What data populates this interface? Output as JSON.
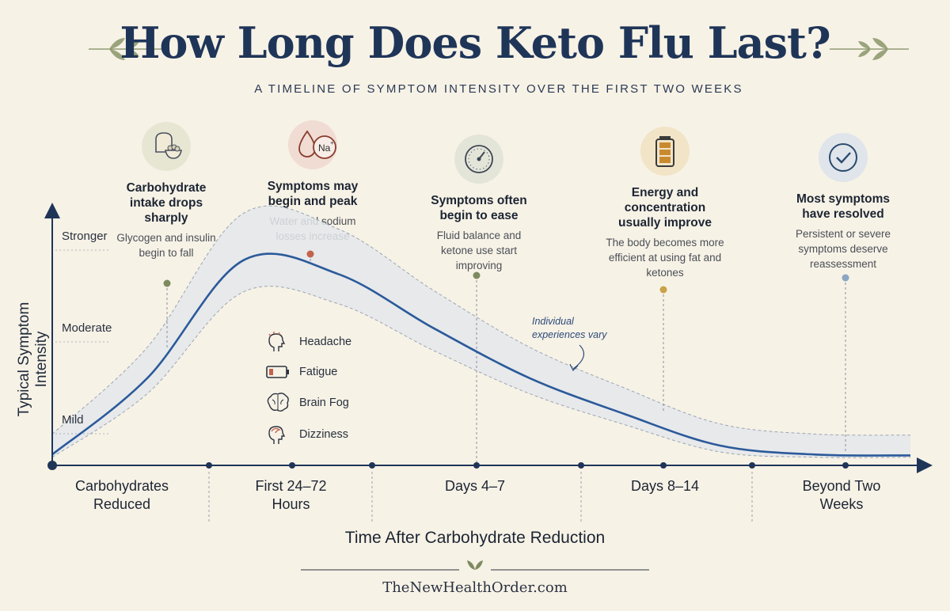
{
  "title": "How Long Does Keto Flu Last?",
  "subtitle": "A TIMELINE OF SYMPTOM INTENSITY OVER THE FIRST TWO WEEKS",
  "colors": {
    "navy": "#1f3558",
    "curve": "#2b5a9a",
    "band": "#e4e8eb",
    "background": "#f7f2e6",
    "accent_olive": "#7d8a5e",
    "accent_red": "#c2624c",
    "accent_gold": "#c9a24a",
    "accent_blue": "#8aa6c2"
  },
  "stages": [
    {
      "icon": "bread-bowl-icon",
      "heading": "Carbohydrate intake drops sharply",
      "body": "Glycogen and insulin begin to fall",
      "marker_color": "#7d8a5e"
    },
    {
      "icon": "water-sodium-icon",
      "heading": "Symptoms may begin and peak",
      "body": "Water and sodium losses increase",
      "marker_color": "#c2624c"
    },
    {
      "icon": "gauge-icon",
      "heading": "Symptoms often begin to ease",
      "body": "Fluid balance and ketone use start improving",
      "marker_color": "#7d8a5e"
    },
    {
      "icon": "battery-icon",
      "heading": "Energy and concentration usually improve",
      "body": "The body becomes more efficient at using fat and ketones",
      "marker_color": "#c9a24a"
    },
    {
      "icon": "check-circle-icon",
      "heading": "Most symptoms have resolved",
      "body": "Persistent or severe symptoms deserve reassessment",
      "marker_color": "#8aa6c2"
    }
  ],
  "chart_data": {
    "type": "area",
    "ylabel": "Typical Symptom Intensity",
    "xlabel": "Time After Carbohydrate Reduction",
    "y_levels": [
      "Mild",
      "Moderate",
      "Stronger"
    ],
    "x_categories": [
      "Carbohydrates Reduced",
      "First 24–72 Hours",
      "Days 4–7",
      "Days 8–14",
      "Beyond Two Weeks"
    ],
    "series": [
      {
        "x": [
          0,
          0.5,
          1,
          1.5,
          2,
          2.5,
          3,
          3.5,
          4,
          4.5
        ],
        "y": [
          0.05,
          0.9,
          2.2,
          2.05,
          1.45,
          0.9,
          0.5,
          0.15,
          0.05,
          0.04
        ]
      }
    ],
    "band": {
      "upper_peak": 2.5,
      "lower_peak": 1.9
    },
    "annotation": "Individual experiences vary",
    "symptoms": [
      {
        "icon": "headache-icon",
        "label": "Headache"
      },
      {
        "icon": "battery-low-icon",
        "label": "Fatigue"
      },
      {
        "icon": "brain-icon",
        "label": "Brain Fog"
      },
      {
        "icon": "dizziness-icon",
        "label": "Dizziness"
      }
    ]
  },
  "footer": "TheNewHealthOrder.com"
}
